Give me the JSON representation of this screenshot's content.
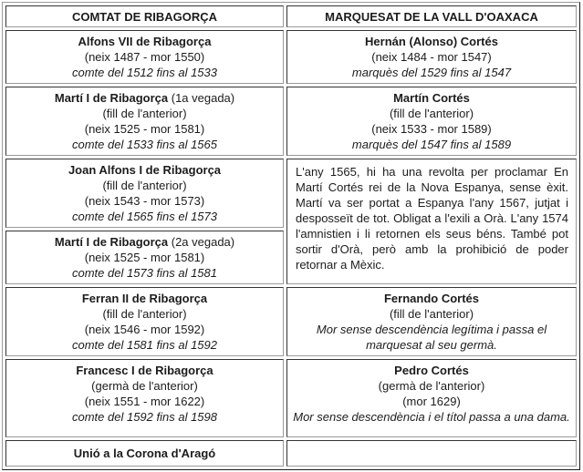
{
  "colors": {
    "background": "#ffffff",
    "text": "#1c1c1c",
    "border_dark": "#343434",
    "border_light": "#9a9a9a"
  },
  "title_row": {
    "left": "COMTAT DE RIBAGORÇA",
    "right": "MARQUESAT DE LA VALL D'OAXACA"
  },
  "left_column": {
    "rows": [
      {
        "name": "Alfons VII de Ribagorça",
        "life": "(neix 1487 - mor 1550)",
        "reign": "comte del 1512 fins al 1533"
      },
      {
        "name": "Martí I de Ribagorça",
        "suffix": " (1a vegada)",
        "relation": "(fill de l'anterior)",
        "life": "(neix 1525 - mor 1581)",
        "reign": "comte del 1533 fins al 1565"
      },
      {
        "name": "Joan Alfons I de Ribagorça",
        "relation": "(fill de l'anterior)",
        "life": "(neix 1543 - mor 1573)",
        "reign": "comte del 1565 fins el 1573"
      },
      {
        "name": "Martí I de Ribagorça",
        "suffix": " (2a vegada)",
        "life": "(neix 1525 - mor 1581)",
        "reign": "comte del 1573 fins al 1581"
      },
      {
        "name": "Ferran II de Ribagorça",
        "relation": "(fill de l'anterior)",
        "life": "(neix 1546 - mor 1592)",
        "reign": "comte del 1581 fins al 1592"
      },
      {
        "name": "Francesc I de Ribagorça",
        "relation": "(germà de l'anterior)",
        "life": "(neix 1551 - mor 1622)",
        "reign": "comte del 1592 fins al 1598"
      }
    ],
    "footer": "Unió a la Corona d'Aragó"
  },
  "right_column": {
    "rows": [
      {
        "name": "Hernán (Alonso) Cortés",
        "life": "(neix 1484 - mor 1547)",
        "reign": "marquès del 1529 fins al 1547"
      },
      {
        "name": "Martín Cortés",
        "relation": "(fill de l'anterior)",
        "life": "(neix 1533 - mor 1589)",
        "reign": "marquès del 1547 fins al 1589"
      },
      {
        "name": "Fernando Cortés",
        "relation": "(fill de l'anterior)",
        "note": "Mor sense descendència legítima i passa el marquesat al seu germà."
      },
      {
        "name": "Pedro Cortés",
        "relation": "(germà de l'anterior)",
        "life": "(mor 1629)",
        "note": "Mor sense descendència i el títol passa a una dama."
      }
    ],
    "paragraph": "L'any 1565, hi ha una revolta per proclamar En Martí Cortés rei de la Nova Espanya, sense èxit. Martí va ser portat a Espanya l'any 1567, jutjat i desposseït de tot. Obligat a l'exili a Orà. L'any 1574 l'amnistien i li retornen els seus béns. També pot sortir d'Orà, però amb la prohibició de poder retornar a Mèxic."
  }
}
